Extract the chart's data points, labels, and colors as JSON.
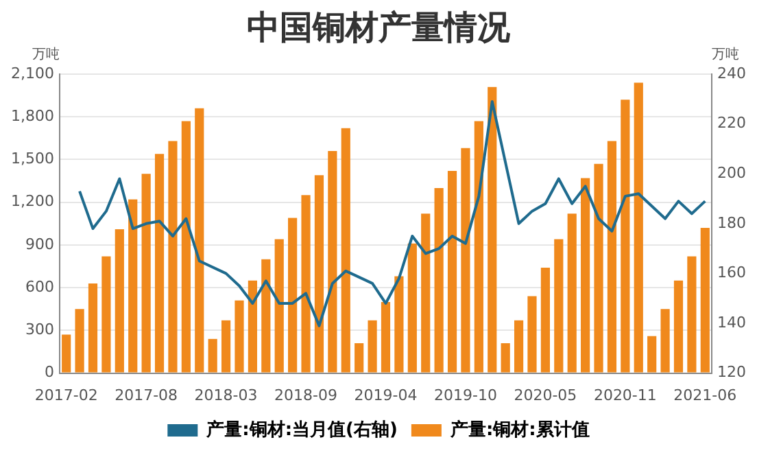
{
  "chart_data": {
    "type": "bar",
    "title": "中国铜材产量情况",
    "ylabel": "万吨",
    "y2label": "万吨",
    "categories": [
      "2017-02",
      null,
      null,
      null,
      null,
      null,
      "2017-08",
      null,
      null,
      null,
      null,
      null,
      "2018-03",
      null,
      null,
      null,
      null,
      null,
      "2018-09",
      null,
      null,
      null,
      null,
      null,
      "2019-04",
      null,
      null,
      null,
      null,
      null,
      "2019-10",
      null,
      null,
      null,
      null,
      null,
      "2020-05",
      null,
      null,
      null,
      null,
      null,
      "2020-11",
      null,
      null,
      null,
      null,
      null,
      "2021-06"
    ],
    "series": [
      {
        "name": "产量:铜材:当月值(右轴)",
        "type": "line",
        "axis": "y2",
        "color": "#1f6b8e",
        "values": [
          null,
          193,
          178,
          185,
          198,
          178,
          180,
          181,
          175,
          182,
          165,
          null,
          160,
          155,
          148,
          157,
          148,
          148,
          152,
          139,
          156,
          161,
          null,
          156,
          148,
          158,
          175,
          168,
          170,
          175,
          172,
          191,
          229,
          null,
          180,
          185,
          188,
          198,
          188,
          195,
          182,
          177,
          191,
          192,
          null,
          182,
          189,
          184,
          189
        ]
      },
      {
        "name": "产量:铜材:累计值",
        "color": "#f0891c",
        "values": [
          270,
          450,
          630,
          820,
          1010,
          1220,
          1400,
          1540,
          1630,
          1770,
          1860,
          240,
          370,
          510,
          650,
          800,
          940,
          1090,
          1250,
          1390,
          1560,
          1720,
          210,
          370,
          500,
          680,
          910,
          1120,
          1300,
          1420,
          1580,
          1770,
          2010,
          210,
          370,
          540,
          740,
          940,
          1120,
          1370,
          1470,
          1630,
          1920,
          2040,
          260,
          450,
          650,
          820,
          1020
        ]
      }
    ],
    "ylim": [
      0,
      2100
    ],
    "yticks": [
      0,
      300,
      600,
      900,
      {
        "value": 1200,
        "label": "1,200"
      },
      {
        "value": 1500,
        "label": "1,500"
      },
      {
        "value": 1800,
        "label": "1,800"
      },
      {
        "value": 2100,
        "label": "2,100"
      }
    ],
    "y2lim": [
      120,
      240
    ],
    "y2ticks": [
      120,
      140,
      160,
      180,
      200,
      220,
      240
    ],
    "grid": "y",
    "legend": "bottom",
    "marker": "none"
  }
}
